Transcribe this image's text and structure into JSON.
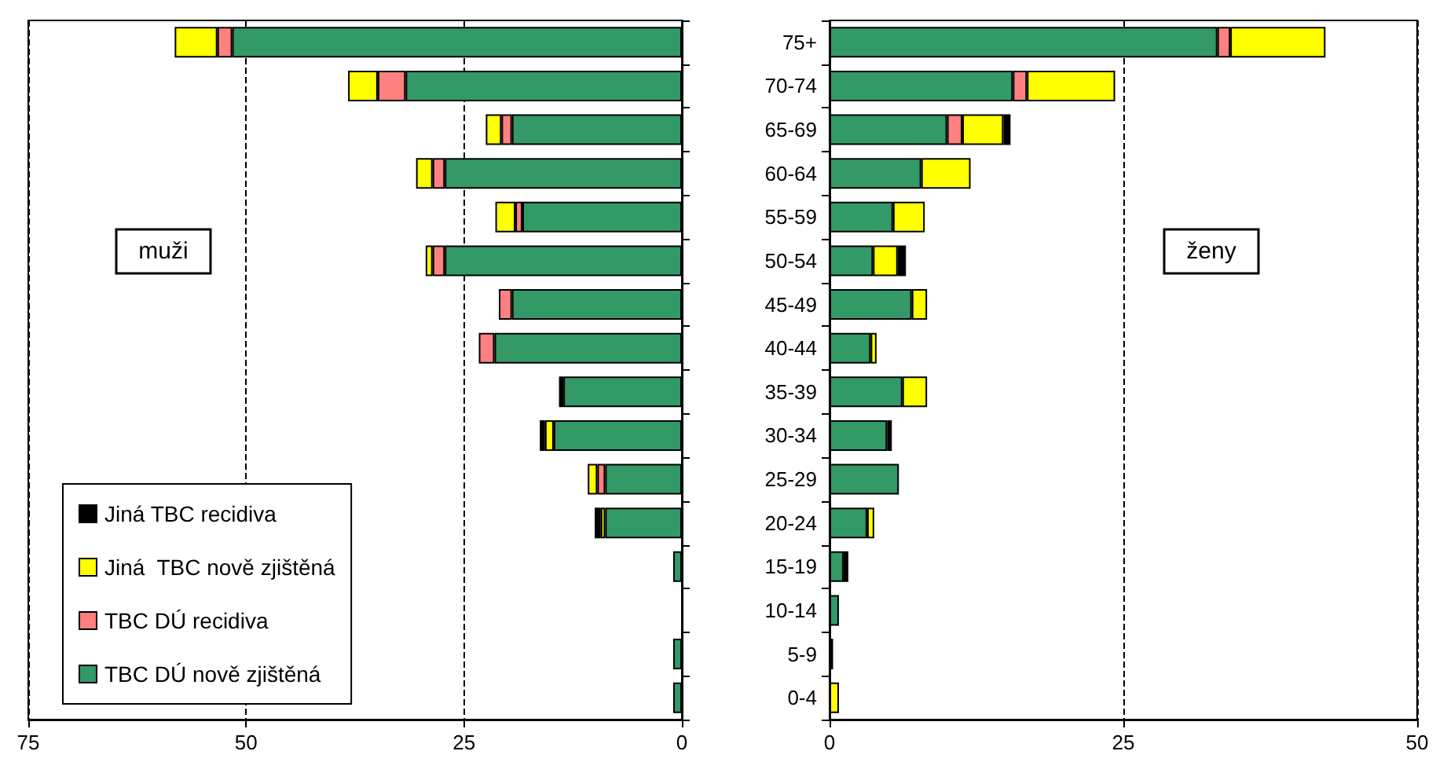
{
  "chart_data": [
    {
      "type": "bar",
      "orientation": "horizontal",
      "stacked": true,
      "categories": [
        null,
        null,
        null,
        null,
        null,
        null,
        null,
        null,
        null,
        null,
        null,
        null,
        null,
        null,
        null,
        null
      ],
      "xlim": [
        75,
        0
      ],
      "xticks": [
        75,
        50,
        25,
        0
      ],
      "grid": "x",
      "line_style": "dashed",
      "legend": "bottom left",
      "annotations": [
        "muži"
      ],
      "series": [
        {
          "name": "TBC DÚ nově zjištěná",
          "color": "#339966",
          "values": [
            51.6,
            31.7,
            19.5,
            27.2,
            18.3,
            27.2,
            19.5,
            21.5,
            13.6,
            14.7,
            8.8,
            8.8,
            1.0,
            null,
            1.0,
            1.0
          ]
        },
        {
          "name": "TBC DÚ recidiva",
          "color": "#ff8080",
          "values": [
            1.7,
            3.2,
            1.2,
            1.4,
            0.8,
            1.4,
            1.5,
            1.8,
            null,
            null,
            0.9,
            null,
            null,
            null,
            null,
            null
          ]
        },
        {
          "name": "Jiná  TBC nově zjištěná",
          "color": "#ffff00",
          "values": [
            4.9,
            3.4,
            1.8,
            1.9,
            2.3,
            0.8,
            null,
            null,
            null,
            1.0,
            1.1,
            0.5,
            null,
            null,
            null,
            null
          ]
        },
        {
          "name": "Jiná TBC recidiva",
          "color": "#000000",
          "values": [
            null,
            null,
            null,
            null,
            null,
            null,
            null,
            null,
            0.5,
            0.6,
            null,
            0.7,
            null,
            null,
            null,
            null
          ]
        }
      ]
    },
    {
      "type": "bar",
      "orientation": "horizontal",
      "stacked": true,
      "categories": [
        "75+",
        "70-74",
        "65-69",
        "60-64",
        "55-59",
        "50-54",
        "45-49",
        "40-44",
        "35-39",
        "30-34",
        "25-29",
        "20-24",
        "15-19",
        "10-14",
        "5-9",
        "0-4"
      ],
      "xlim": [
        0,
        50
      ],
      "xticks": [
        0,
        25,
        50
      ],
      "grid": "x",
      "line_style": "dashed",
      "legend": false,
      "annotations": [
        "ženy"
      ],
      "series": [
        {
          "color": "#339966",
          "values": [
            33.0,
            15.6,
            10.0,
            7.8,
            5.4,
            3.7,
            7.0,
            3.5,
            6.2,
            4.9,
            5.9,
            3.2,
            1.2,
            0.8,
            null,
            null
          ]
        },
        {
          "color": "#ff8080",
          "values": [
            1.1,
            1.2,
            1.3,
            null,
            null,
            null,
            null,
            null,
            null,
            null,
            null,
            null,
            null,
            null,
            null,
            null
          ]
        },
        {
          "color": "#ffff00",
          "values": [
            8.1,
            7.5,
            3.5,
            4.2,
            2.7,
            2.1,
            1.3,
            0.5,
            2.1,
            null,
            null,
            0.6,
            null,
            null,
            null,
            0.8
          ]
        },
        {
          "color": "#000000",
          "values": [
            null,
            null,
            0.6,
            null,
            null,
            0.7,
            null,
            null,
            null,
            0.4,
            null,
            null,
            0.4,
            null,
            0.3,
            null
          ]
        }
      ]
    }
  ]
}
